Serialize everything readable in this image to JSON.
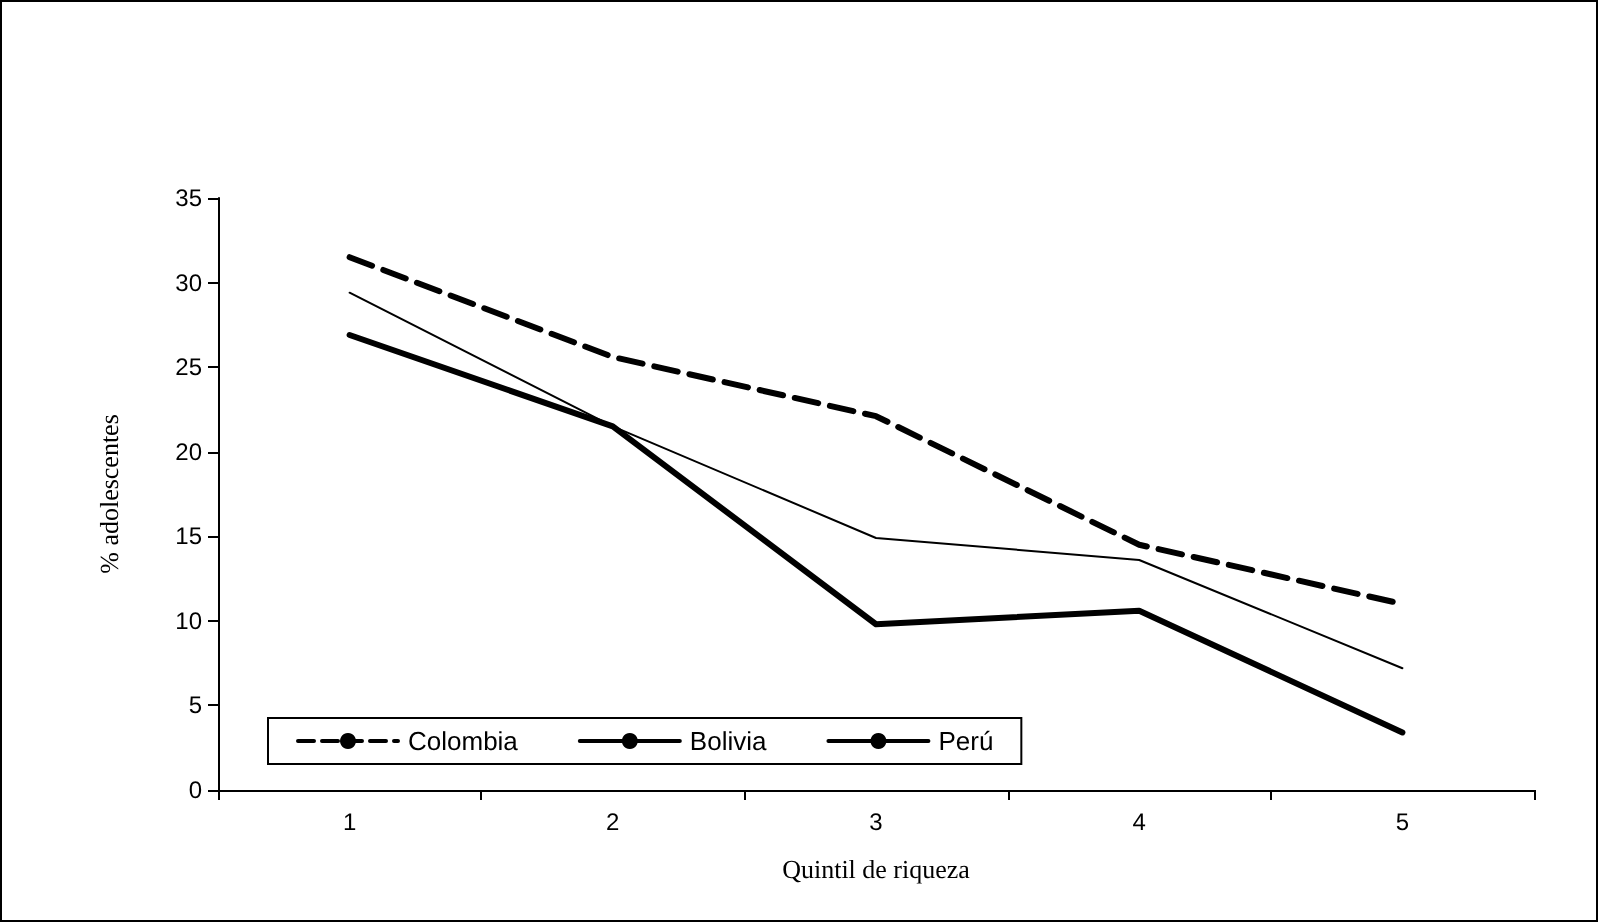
{
  "chart_data": {
    "type": "line",
    "xlabel": "Quintil de riqueza",
    "ylabel": "% adolescentes",
    "categories": [
      "1",
      "2",
      "3",
      "4",
      "5"
    ],
    "series": [
      {
        "name": "Colombia",
        "color": "#000000",
        "line_style": "dashed",
        "values": [
          31.5,
          25.6,
          22.1,
          14.5,
          11
        ]
      },
      {
        "name": "Bolivia",
        "color": "#000000",
        "line_style": "solid",
        "values": [
          29.4,
          21.5,
          14.9,
          13.6,
          7.2
        ]
      },
      {
        "name": "Perú",
        "color": "#000000",
        "line_style": "solid",
        "values": [
          26.9,
          21.5,
          9.8,
          10.6,
          3.4
        ]
      }
    ],
    "ylim": [
      0,
      35
    ],
    "yticks": [
      0,
      5,
      10,
      15,
      20,
      25,
      30,
      35
    ],
    "grid": false,
    "legend": "bottom left",
    "marker": "none"
  }
}
